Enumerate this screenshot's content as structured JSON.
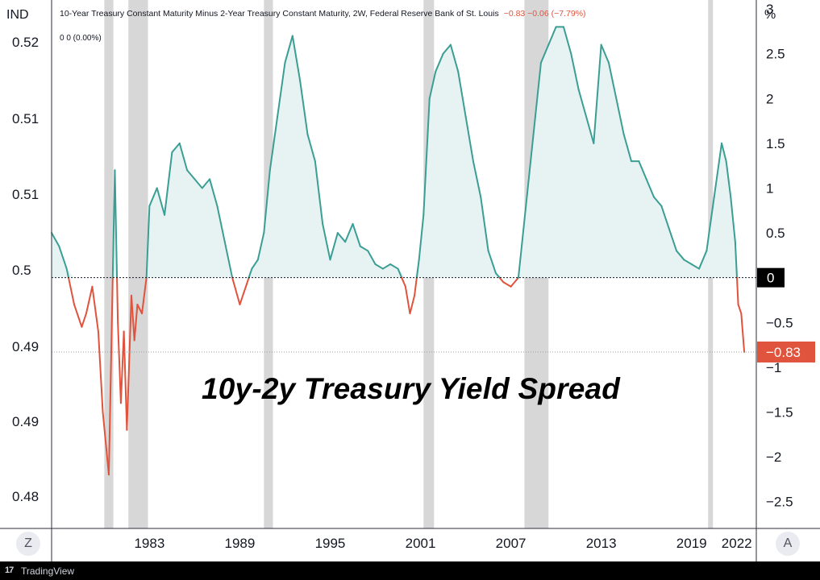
{
  "header": {
    "left_unit": "IND",
    "right_unit": "%",
    "series_title": "10-Year Treasury Constant Maturity Minus 2-Year Treasury Constant Maturity, 2W, Federal Reserve Bank of St. Louis",
    "series_values": "−0.83  −0.06 (−7.79%)",
    "secondary_legend": "0  0 (0.00%)"
  },
  "overlay_title": "10y-2y Treasury Yield Spread",
  "buttons": {
    "left": "Z",
    "right": "A"
  },
  "footer": {
    "brand_mark": "17",
    "brand_name": "TradingView"
  },
  "colors": {
    "positive": "#3a9e94",
    "negative": "#e0533d",
    "fill": "#e7f3f3",
    "recession": "#d7d7d7",
    "last_badge": "#e0533d",
    "zero_badge": "#000000"
  },
  "chart_data": {
    "type": "area",
    "x_unit": "year",
    "x_ticks": [
      "1983",
      "1989",
      "1995",
      "2001",
      "2007",
      "2013",
      "2019",
      "2022"
    ],
    "left_axis_ticks": [
      "0.52",
      "0.51",
      "0.51",
      "0.5",
      "0.49",
      "0.49",
      "0.48"
    ],
    "right_axis_ticks": [
      "3",
      "2.5",
      "2",
      "1.5",
      "1",
      "0.5",
      "0",
      "−0.5",
      "−1",
      "−1.5",
      "−2",
      "−2.5"
    ],
    "y_range": [
      -2.8,
      3.1
    ],
    "zero_label": "0",
    "last_value_label": "−0.83",
    "last_value": -0.83,
    "recessions": [
      [
        1980.0,
        1980.6
      ],
      [
        1981.6,
        1982.9
      ],
      [
        1990.6,
        1991.2
      ],
      [
        2001.2,
        2001.9
      ],
      [
        2007.9,
        2009.5
      ],
      [
        2020.1,
        2020.4
      ]
    ],
    "x": [
      1976.5,
      1977.0,
      1977.5,
      1978.0,
      1978.5,
      1978.8,
      1979.2,
      1979.6,
      1979.9,
      1980.3,
      1980.5,
      1980.7,
      1980.9,
      1981.1,
      1981.3,
      1981.5,
      1981.8,
      1982.0,
      1982.2,
      1982.5,
      1982.8,
      1983.0,
      1983.5,
      1984.0,
      1984.5,
      1985.0,
      1985.5,
      1986.0,
      1986.5,
      1987.0,
      1987.5,
      1988.0,
      1988.5,
      1989.0,
      1989.4,
      1989.8,
      1990.2,
      1990.6,
      1991.0,
      1991.5,
      1992.0,
      1992.5,
      1993.0,
      1993.5,
      1994.0,
      1994.5,
      1995.0,
      1995.5,
      1996.0,
      1996.5,
      1997.0,
      1997.5,
      1998.0,
      1998.5,
      1999.0,
      1999.5,
      2000.0,
      2000.3,
      2000.6,
      2000.9,
      2001.2,
      2001.6,
      2002.0,
      2002.5,
      2003.0,
      2003.5,
      2004.0,
      2004.5,
      2005.0,
      2005.5,
      2006.0,
      2006.5,
      2007.0,
      2007.5,
      2008.0,
      2008.5,
      2009.0,
      2009.5,
      2010.0,
      2010.5,
      2011.0,
      2011.5,
      2012.0,
      2012.5,
      2013.0,
      2013.5,
      2014.0,
      2014.5,
      2015.0,
      2015.5,
      2016.0,
      2016.5,
      2017.0,
      2017.5,
      2018.0,
      2018.5,
      2019.0,
      2019.5,
      2020.0,
      2020.5,
      2021.0,
      2021.3,
      2021.6,
      2021.9,
      2022.1,
      2022.3,
      2022.5
    ],
    "y": [
      0.5,
      0.35,
      0.1,
      -0.3,
      -0.55,
      -0.4,
      -0.1,
      -0.6,
      -1.5,
      -2.2,
      -0.5,
      1.2,
      -0.5,
      -1.4,
      -0.6,
      -1.7,
      -0.2,
      -0.7,
      -0.3,
      -0.4,
      0.0,
      0.8,
      1.0,
      0.7,
      1.4,
      1.5,
      1.2,
      1.1,
      1.0,
      1.1,
      0.8,
      0.4,
      0.0,
      -0.3,
      -0.1,
      0.1,
      0.2,
      0.5,
      1.2,
      1.8,
      2.4,
      2.7,
      2.2,
      1.6,
      1.3,
      0.6,
      0.2,
      0.5,
      0.4,
      0.6,
      0.35,
      0.3,
      0.15,
      0.1,
      0.15,
      0.1,
      -0.1,
      -0.4,
      -0.2,
      0.2,
      0.7,
      2.0,
      2.3,
      2.5,
      2.6,
      2.3,
      1.8,
      1.3,
      0.9,
      0.3,
      0.05,
      -0.05,
      -0.1,
      0.0,
      0.8,
      1.6,
      2.4,
      2.6,
      2.8,
      2.8,
      2.5,
      2.1,
      1.8,
      1.5,
      2.6,
      2.4,
      2.0,
      1.6,
      1.3,
      1.3,
      1.1,
      0.9,
      0.8,
      0.55,
      0.3,
      0.2,
      0.15,
      0.1,
      0.3,
      0.9,
      1.5,
      1.3,
      0.9,
      0.4,
      -0.3,
      -0.4,
      -0.83
    ]
  }
}
